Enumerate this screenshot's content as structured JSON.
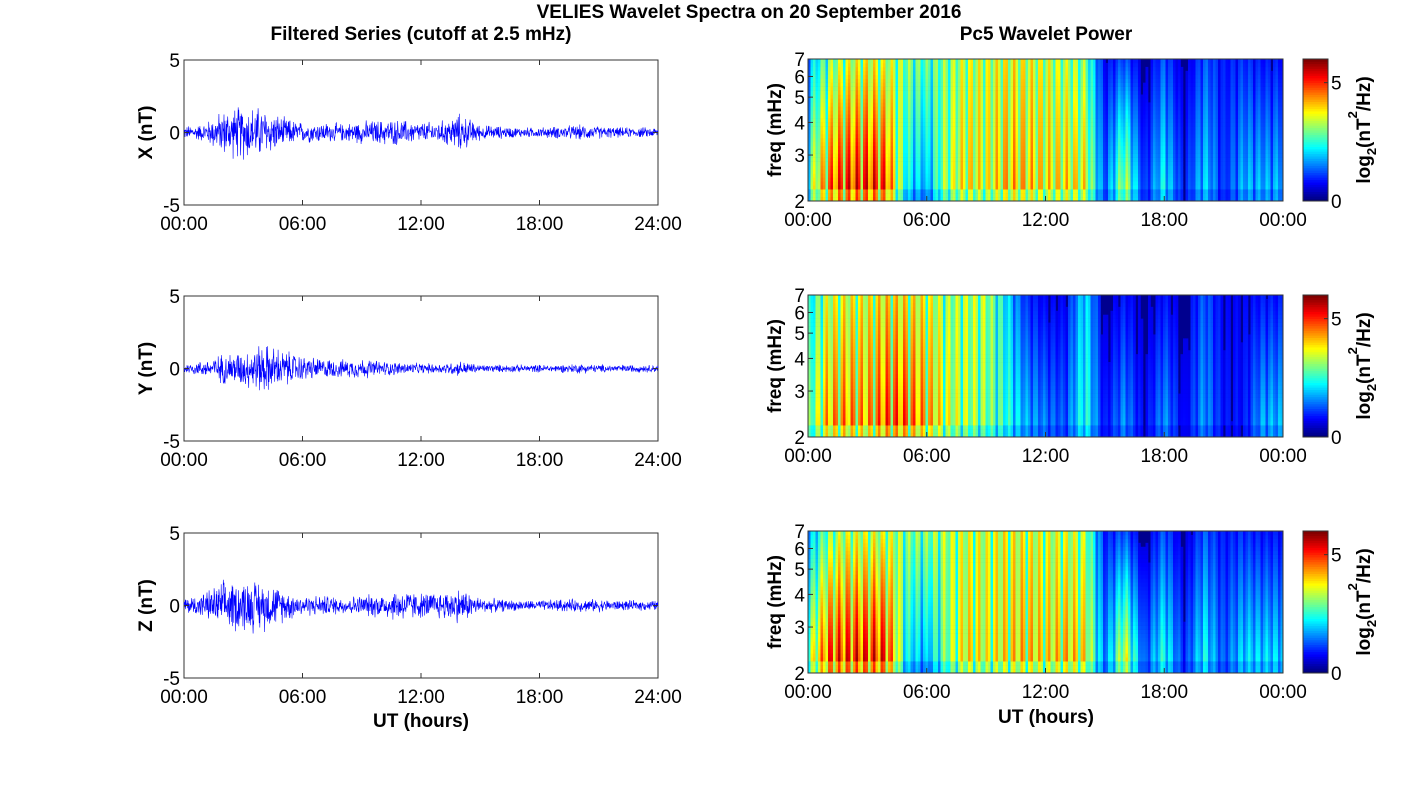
{
  "figure": {
    "suptitle": "VELIES Wavelet Spectra on 20 September 2016",
    "left_title": "Filtered Series (cutoff at 2.5 mHz)",
    "right_title": "Pc5 Wavelet Power",
    "xlabel": "UT (hours)"
  },
  "chart_data": [
    {
      "type": "line",
      "panel": "filtered-x",
      "ylabel": "X (nT)",
      "ylim": [
        -5,
        5
      ],
      "yticks": [
        "5",
        "0",
        "-5"
      ],
      "xlim": [
        0,
        24
      ],
      "xticks": [
        "00:00",
        "06:00",
        "12:00",
        "18:00",
        "24:00"
      ],
      "series": [
        {
          "color": "#0000ff",
          "hour_bins": [
            0,
            1,
            2,
            3,
            4,
            5,
            6,
            7,
            8,
            9,
            10,
            11,
            12,
            13,
            14,
            15,
            16,
            17,
            18,
            19,
            20,
            21,
            22,
            23
          ],
          "amplitude_envelope": [
            0.5,
            0.7,
            1.8,
            2.2,
            2.0,
            1.2,
            0.8,
            0.8,
            0.7,
            0.9,
            1.0,
            1.0,
            0.8,
            0.9,
            1.5,
            0.6,
            0.5,
            0.4,
            0.4,
            0.5,
            0.6,
            0.5,
            0.4,
            0.4
          ]
        }
      ]
    },
    {
      "type": "line",
      "panel": "filtered-y",
      "ylabel": "Y (nT)",
      "ylim": [
        -5,
        5
      ],
      "yticks": [
        "5",
        "0",
        "-5"
      ],
      "xlim": [
        0,
        24
      ],
      "xticks": [
        "00:00",
        "06:00",
        "12:00",
        "18:00",
        "24:00"
      ],
      "series": [
        {
          "color": "#0000ff",
          "hour_bins": [
            0,
            1,
            2,
            3,
            4,
            5,
            6,
            7,
            8,
            9,
            10,
            11,
            12,
            13,
            14,
            15,
            16,
            17,
            18,
            19,
            20,
            21,
            22,
            23
          ],
          "amplitude_envelope": [
            0.4,
            0.6,
            1.2,
            1.4,
            2.0,
            1.5,
            1.0,
            0.8,
            0.7,
            0.8,
            0.6,
            0.5,
            0.4,
            0.4,
            0.6,
            0.3,
            0.3,
            0.3,
            0.3,
            0.3,
            0.4,
            0.3,
            0.3,
            0.3
          ]
        }
      ]
    },
    {
      "type": "line",
      "panel": "filtered-z",
      "ylabel": "Z (nT)",
      "ylim": [
        -5,
        5
      ],
      "yticks": [
        "5",
        "0",
        "-5"
      ],
      "xlim": [
        0,
        24
      ],
      "xticks": [
        "00:00",
        "06:00",
        "12:00",
        "18:00",
        "24:00"
      ],
      "series": [
        {
          "color": "#0000ff",
          "hour_bins": [
            0,
            1,
            2,
            3,
            4,
            5,
            6,
            7,
            8,
            9,
            10,
            11,
            12,
            13,
            14,
            15,
            16,
            17,
            18,
            19,
            20,
            21,
            22,
            23
          ],
          "amplitude_envelope": [
            0.6,
            1.0,
            1.9,
            2.1,
            2.0,
            1.3,
            0.8,
            0.8,
            0.7,
            0.8,
            1.0,
            1.3,
            1.0,
            1.1,
            1.4,
            0.6,
            0.5,
            0.4,
            0.4,
            0.5,
            0.5,
            0.5,
            0.4,
            0.4
          ]
        }
      ]
    },
    {
      "type": "heatmap",
      "panel": "wavelet-x",
      "ylabel": "freq (mHz)",
      "ylim": [
        2,
        7
      ],
      "yscale": "log",
      "yticks": [
        "2",
        "3",
        "4",
        "5",
        "6",
        "7"
      ],
      "xlim": [
        0,
        24
      ],
      "xticks": [
        "00:00",
        "06:00",
        "12:00",
        "18:00",
        "00:00"
      ],
      "colorbar": {
        "label_base": "log",
        "label_sub": "2",
        "label_mid": "(nT",
        "label_sup": "2",
        "label_end": "/Hz)",
        "ticks": [
          "0",
          "5"
        ],
        "range": [
          0,
          6
        ]
      },
      "hour_bins": [
        0,
        1,
        2,
        3,
        4,
        5,
        6,
        7,
        8,
        9,
        10,
        11,
        12,
        13,
        14,
        15,
        16,
        17,
        18,
        19,
        20,
        21,
        22,
        23
      ],
      "power_low_freq": [
        3.5,
        5.5,
        6.0,
        6.0,
        5.8,
        2.5,
        2.0,
        3.8,
        4.5,
        4.2,
        4.8,
        4.8,
        4.5,
        4.6,
        4.4,
        1.5,
        4.2,
        1.2,
        2.8,
        1.0,
        2.5,
        1.2,
        2.2,
        2.2
      ],
      "power_high_freq": [
        2.0,
        3.5,
        4.0,
        4.2,
        4.0,
        3.5,
        3.2,
        3.5,
        4.0,
        4.0,
        4.2,
        4.2,
        4.0,
        3.8,
        3.5,
        0.8,
        1.5,
        0.5,
        1.5,
        0.5,
        1.5,
        1.0,
        1.2,
        1.0
      ]
    },
    {
      "type": "heatmap",
      "panel": "wavelet-y",
      "ylabel": "freq (mHz)",
      "ylim": [
        2,
        7
      ],
      "yscale": "log",
      "yticks": [
        "2",
        "3",
        "4",
        "5",
        "6",
        "7"
      ],
      "xlim": [
        0,
        24
      ],
      "xticks": [
        "00:00",
        "06:00",
        "12:00",
        "18:00",
        "00:00"
      ],
      "colorbar": {
        "label_base": "log",
        "label_sub": "2",
        "label_mid": "(nT",
        "label_sup": "2",
        "label_end": "/Hz)",
        "ticks": [
          "0",
          "5"
        ],
        "range": [
          0,
          6
        ]
      },
      "hour_bins": [
        0,
        1,
        2,
        3,
        4,
        5,
        6,
        7,
        8,
        9,
        10,
        11,
        12,
        13,
        14,
        15,
        16,
        17,
        18,
        19,
        20,
        21,
        22,
        23
      ],
      "power_low_freq": [
        3.2,
        5.0,
        5.2,
        5.0,
        5.6,
        5.5,
        5.0,
        4.2,
        3.8,
        3.5,
        3.0,
        2.2,
        1.8,
        1.5,
        3.0,
        1.0,
        2.0,
        0.8,
        2.0,
        0.8,
        2.0,
        1.0,
        1.0,
        2.2
      ],
      "power_high_freq": [
        2.5,
        4.0,
        4.2,
        4.2,
        4.5,
        4.4,
        4.2,
        3.6,
        3.8,
        3.8,
        2.5,
        1.2,
        0.8,
        0.8,
        2.5,
        0.5,
        1.0,
        0.5,
        1.0,
        0.5,
        1.5,
        0.8,
        0.8,
        1.0
      ]
    },
    {
      "type": "heatmap",
      "panel": "wavelet-z",
      "ylabel": "freq (mHz)",
      "ylim": [
        2,
        7
      ],
      "yscale": "log",
      "yticks": [
        "2",
        "3",
        "4",
        "5",
        "6",
        "7"
      ],
      "xlim": [
        0,
        24
      ],
      "xticks": [
        "00:00",
        "06:00",
        "12:00",
        "18:00",
        "00:00"
      ],
      "colorbar": {
        "label_base": "log",
        "label_sub": "2",
        "label_mid": "(nT",
        "label_sup": "2",
        "label_end": "/Hz)",
        "ticks": [
          "0",
          "5"
        ],
        "range": [
          0,
          6
        ]
      },
      "hour_bins": [
        0,
        1,
        2,
        3,
        4,
        5,
        6,
        7,
        8,
        9,
        10,
        11,
        12,
        13,
        14,
        15,
        16,
        17,
        18,
        19,
        20,
        21,
        22,
        23
      ],
      "power_low_freq": [
        3.8,
        5.8,
        6.0,
        6.0,
        6.0,
        2.5,
        2.0,
        3.5,
        4.5,
        4.2,
        4.5,
        4.8,
        4.5,
        4.8,
        4.5,
        1.8,
        4.5,
        1.5,
        3.0,
        1.2,
        2.8,
        1.5,
        2.5,
        2.5
      ],
      "power_high_freq": [
        2.0,
        3.5,
        4.0,
        4.0,
        4.0,
        3.5,
        3.5,
        3.8,
        4.0,
        4.0,
        4.2,
        4.2,
        4.0,
        4.0,
        3.8,
        1.0,
        1.5,
        0.5,
        1.5,
        0.5,
        1.5,
        1.0,
        1.2,
        1.0
      ]
    }
  ]
}
